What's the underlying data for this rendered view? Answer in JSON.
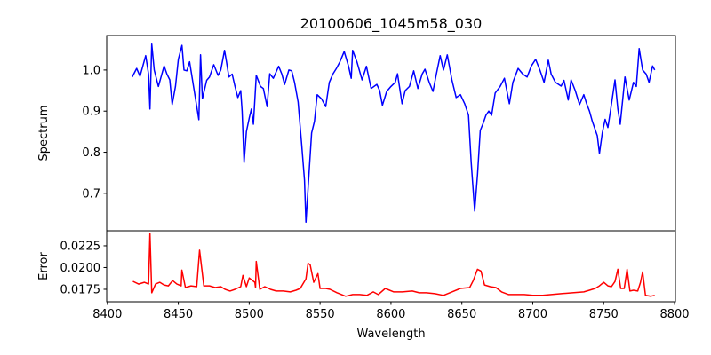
{
  "chart_data": [
    {
      "type": "line",
      "title": "20100606_1045m58_030",
      "xlabel": "",
      "ylabel": "Spectrum",
      "xlim": [
        8399.5,
        8800.6
      ],
      "ylim": [
        0.609,
        1.084
      ],
      "yticks": [
        0.7,
        0.8,
        0.9,
        1.0
      ],
      "ytick_labels": [
        "0.7",
        "0.8",
        "0.9",
        "1.0"
      ],
      "grid": false,
      "series": [
        {
          "name": "Spectrum",
          "color": "#0000ff",
          "points": [
            [
              8417.5,
              0.983
            ],
            [
              8420.6,
              1.004
            ],
            [
              8423,
              0.985
            ],
            [
              8425,
              1.01
            ],
            [
              8427,
              1.035
            ],
            [
              8429,
              0.99
            ],
            [
              8430,
              0.905
            ],
            [
              8431.3,
              1.063
            ],
            [
              8433,
              1.0
            ],
            [
              8436,
              0.96
            ],
            [
              8440,
              1.01
            ],
            [
              8442,
              0.99
            ],
            [
              8444,
              0.976
            ],
            [
              8445.7,
              0.916
            ],
            [
              8448,
              0.96
            ],
            [
              8450,
              1.026
            ],
            [
              8452.6,
              1.06
            ],
            [
              8454,
              1.0
            ],
            [
              8456,
              0.998
            ],
            [
              8458,
              1.02
            ],
            [
              8461,
              0.955
            ],
            [
              8464.5,
              0.879
            ],
            [
              8465.7,
              1.037
            ],
            [
              8467,
              0.93
            ],
            [
              8470,
              0.975
            ],
            [
              8472,
              0.983
            ],
            [
              8475,
              1.013
            ],
            [
              8478,
              0.987
            ],
            [
              8480,
              1.0
            ],
            [
              8482.6,
              1.048
            ],
            [
              8484,
              1.02
            ],
            [
              8485.7,
              0.983
            ],
            [
              8488,
              0.99
            ],
            [
              8490,
              0.96
            ],
            [
              8492,
              0.933
            ],
            [
              8494,
              0.95
            ],
            [
              8495,
              0.9
            ],
            [
              8496.4,
              0.775
            ],
            [
              8498,
              0.85
            ],
            [
              8500,
              0.883
            ],
            [
              8501.5,
              0.905
            ],
            [
              8503,
              0.868
            ],
            [
              8505,
              0.987
            ],
            [
              8508,
              0.96
            ],
            [
              8510,
              0.955
            ],
            [
              8512.6,
              0.911
            ],
            [
              8514.5,
              0.991
            ],
            [
              8517,
              0.98
            ],
            [
              8520.8,
              1.009
            ],
            [
              8523,
              0.99
            ],
            [
              8525,
              0.965
            ],
            [
              8528,
              1.0
            ],
            [
              8530,
              0.998
            ],
            [
              8532,
              0.97
            ],
            [
              8534.5,
              0.922
            ],
            [
              8537,
              0.819
            ],
            [
              8539,
              0.732
            ],
            [
              8540,
              0.63
            ],
            [
              8542,
              0.739
            ],
            [
              8544,
              0.847
            ],
            [
              8546,
              0.875
            ],
            [
              8548,
              0.94
            ],
            [
              8551,
              0.93
            ],
            [
              8554,
              0.911
            ],
            [
              8556.5,
              0.97
            ],
            [
              8559,
              0.99
            ],
            [
              8561.5,
              1.004
            ],
            [
              8564,
              1.02
            ],
            [
              8567,
              1.045
            ],
            [
              8570,
              1.01
            ],
            [
              8572,
              0.98
            ],
            [
              8573,
              1.048
            ],
            [
              8576,
              1.02
            ],
            [
              8579.6,
              0.976
            ],
            [
              8582.7,
              1.009
            ],
            [
              8586,
              0.955
            ],
            [
              8590,
              0.965
            ],
            [
              8592,
              0.95
            ],
            [
              8594,
              0.914
            ],
            [
              8597,
              0.948
            ],
            [
              8600,
              0.96
            ],
            [
              8603,
              0.97
            ],
            [
              8604.6,
              0.991
            ],
            [
              8607.8,
              0.918
            ],
            [
              8610,
              0.95
            ],
            [
              8613,
              0.96
            ],
            [
              8616,
              0.998
            ],
            [
              8619,
              0.955
            ],
            [
              8622,
              0.99
            ],
            [
              8624,
              1.002
            ],
            [
              8627,
              0.97
            ],
            [
              8629.6,
              0.948
            ],
            [
              8632,
              0.99
            ],
            [
              8634.7,
              1.035
            ],
            [
              8637,
              1.0
            ],
            [
              8639.7,
              1.037
            ],
            [
              8643,
              0.976
            ],
            [
              8646,
              0.933
            ],
            [
              8649,
              0.94
            ],
            [
              8652,
              0.918
            ],
            [
              8654.7,
              0.89
            ],
            [
              8656.6,
              0.775
            ],
            [
              8659,
              0.657
            ],
            [
              8661,
              0.745
            ],
            [
              8663,
              0.853
            ],
            [
              8665,
              0.87
            ],
            [
              8667,
              0.89
            ],
            [
              8669,
              0.9
            ],
            [
              8671,
              0.89
            ],
            [
              8673.5,
              0.944
            ],
            [
              8677,
              0.96
            ],
            [
              8680,
              0.98
            ],
            [
              8683.5,
              0.918
            ],
            [
              8686,
              0.97
            ],
            [
              8689.7,
              1.004
            ],
            [
              8693,
              0.99
            ],
            [
              8696,
              0.983
            ],
            [
              8699,
              1.01
            ],
            [
              8702,
              1.026
            ],
            [
              8705,
              1.0
            ],
            [
              8708,
              0.97
            ],
            [
              8711,
              1.024
            ],
            [
              8713,
              0.99
            ],
            [
              8716,
              0.97
            ],
            [
              8720,
              0.961
            ],
            [
              8722,
              0.975
            ],
            [
              8725,
              0.927
            ],
            [
              8727,
              0.976
            ],
            [
              8730,
              0.95
            ],
            [
              8733,
              0.916
            ],
            [
              8736,
              0.94
            ],
            [
              8738,
              0.918
            ],
            [
              8740,
              0.9
            ],
            [
              8742,
              0.875
            ],
            [
              8745.5,
              0.84
            ],
            [
              8747,
              0.797
            ],
            [
              8749,
              0.847
            ],
            [
              8751,
              0.88
            ],
            [
              8753,
              0.86
            ],
            [
              8755,
              0.905
            ],
            [
              8758,
              0.976
            ],
            [
              8760,
              0.905
            ],
            [
              8761.7,
              0.868
            ],
            [
              8765,
              0.983
            ],
            [
              8768,
              0.927
            ],
            [
              8771,
              0.97
            ],
            [
              8773,
              0.96
            ],
            [
              8775,
              1.052
            ],
            [
              8777.5,
              1.0
            ],
            [
              8780,
              0.99
            ],
            [
              8782,
              0.97
            ],
            [
              8784.5,
              1.01
            ],
            [
              8786,
              1.0
            ]
          ]
        }
      ]
    },
    {
      "type": "line",
      "title": "",
      "xlabel": "Wavelength",
      "ylabel": "Error",
      "xlim": [
        8399.5,
        8800.6
      ],
      "ylim": [
        0.01607,
        0.02423
      ],
      "xticks": [
        8400,
        8450,
        8500,
        8550,
        8600,
        8650,
        8700,
        8750,
        8800
      ],
      "xtick_labels": [
        "8400",
        "8450",
        "8500",
        "8550",
        "8600",
        "8650",
        "8700",
        "8750",
        "8800"
      ],
      "yticks": [
        0.0175,
        0.02,
        0.0225
      ],
      "ytick_labels": [
        "0.0175",
        "0.0200",
        "0.0225"
      ],
      "grid": false,
      "series": [
        {
          "name": "Error",
          "color": "#ff0000",
          "points": [
            [
              8418,
              0.01842
            ],
            [
              8422,
              0.0181
            ],
            [
              8426,
              0.0183
            ],
            [
              8429,
              0.01811
            ],
            [
              8430,
              0.02393
            ],
            [
              8431.3,
              0.0171
            ],
            [
              8434,
              0.0181
            ],
            [
              8437,
              0.0183
            ],
            [
              8440,
              0.018
            ],
            [
              8443,
              0.0179
            ],
            [
              8446,
              0.0185
            ],
            [
              8449,
              0.0181
            ],
            [
              8452,
              0.0179
            ],
            [
              8452.5,
              0.0197
            ],
            [
              8455,
              0.0177
            ],
            [
              8459,
              0.0179
            ],
            [
              8463,
              0.0178
            ],
            [
              8465,
              0.022
            ],
            [
              8468,
              0.0179
            ],
            [
              8472,
              0.0179
            ],
            [
              8476,
              0.0177
            ],
            [
              8480,
              0.0178
            ],
            [
              8483,
              0.0175
            ],
            [
              8486.5,
              0.0173
            ],
            [
              8490,
              0.0175
            ],
            [
              8494,
              0.0178
            ],
            [
              8495.6,
              0.0191
            ],
            [
              8498,
              0.0178
            ],
            [
              8500,
              0.0188
            ],
            [
              8504,
              0.0183
            ],
            [
              8504.5,
              0.0177
            ],
            [
              8505,
              0.0207
            ],
            [
              8507.5,
              0.0175
            ],
            [
              8511,
              0.0178
            ],
            [
              8515,
              0.0175
            ],
            [
              8519,
              0.0173
            ],
            [
              8524,
              0.0173
            ],
            [
              8529,
              0.0172
            ],
            [
              8533,
              0.0174
            ],
            [
              8536,
              0.0176
            ],
            [
              8540,
              0.0187
            ],
            [
              8541.5,
              0.0205
            ],
            [
              8543,
              0.0203
            ],
            [
              8545.5,
              0.0183
            ],
            [
              8548.5,
              0.0193
            ],
            [
              8550,
              0.0176
            ],
            [
              8554,
              0.0176
            ],
            [
              8557,
              0.0175
            ],
            [
              8562,
              0.0171
            ],
            [
              8568,
              0.0167
            ],
            [
              8573,
              0.0169
            ],
            [
              8578,
              0.0169
            ],
            [
              8583,
              0.0168
            ],
            [
              8587.5,
              0.0172
            ],
            [
              8591,
              0.0169
            ],
            [
              8596,
              0.0176
            ],
            [
              8602,
              0.0172
            ],
            [
              8608,
              0.0172
            ],
            [
              8615,
              0.0173
            ],
            [
              8620,
              0.0171
            ],
            [
              8625,
              0.0171
            ],
            [
              8631,
              0.017
            ],
            [
              8637,
              0.0168
            ],
            [
              8643,
              0.0172
            ],
            [
              8649,
              0.0176
            ],
            [
              8655.5,
              0.0177
            ],
            [
              8658,
              0.0185
            ],
            [
              8661,
              0.0198
            ],
            [
              8663.5,
              0.0196
            ],
            [
              8666,
              0.018
            ],
            [
              8670,
              0.0178
            ],
            [
              8674,
              0.0177
            ],
            [
              8678,
              0.0172
            ],
            [
              8683,
              0.0169
            ],
            [
              8688,
              0.0169
            ],
            [
              8694,
              0.0169
            ],
            [
              8700,
              0.0168
            ],
            [
              8707,
              0.0168
            ],
            [
              8713,
              0.0169
            ],
            [
              8720,
              0.017
            ],
            [
              8728,
              0.0171
            ],
            [
              8736,
              0.0172
            ],
            [
              8740,
              0.0174
            ],
            [
              8744,
              0.0176
            ],
            [
              8747,
              0.0179
            ],
            [
              8750,
              0.0183
            ],
            [
              8753,
              0.0179
            ],
            [
              8755.5,
              0.0178
            ],
            [
              8758,
              0.0184
            ],
            [
              8760,
              0.0198
            ],
            [
              8762,
              0.0176
            ],
            [
              8764.5,
              0.0176
            ],
            [
              8766.5,
              0.0198
            ],
            [
              8768.5,
              0.0173
            ],
            [
              8771,
              0.0174
            ],
            [
              8774,
              0.0173
            ],
            [
              8776,
              0.0183
            ],
            [
              8777.5,
              0.0195
            ],
            [
              8779.5,
              0.0168
            ],
            [
              8783,
              0.0167
            ],
            [
              8786,
              0.0168
            ]
          ]
        }
      ]
    }
  ]
}
